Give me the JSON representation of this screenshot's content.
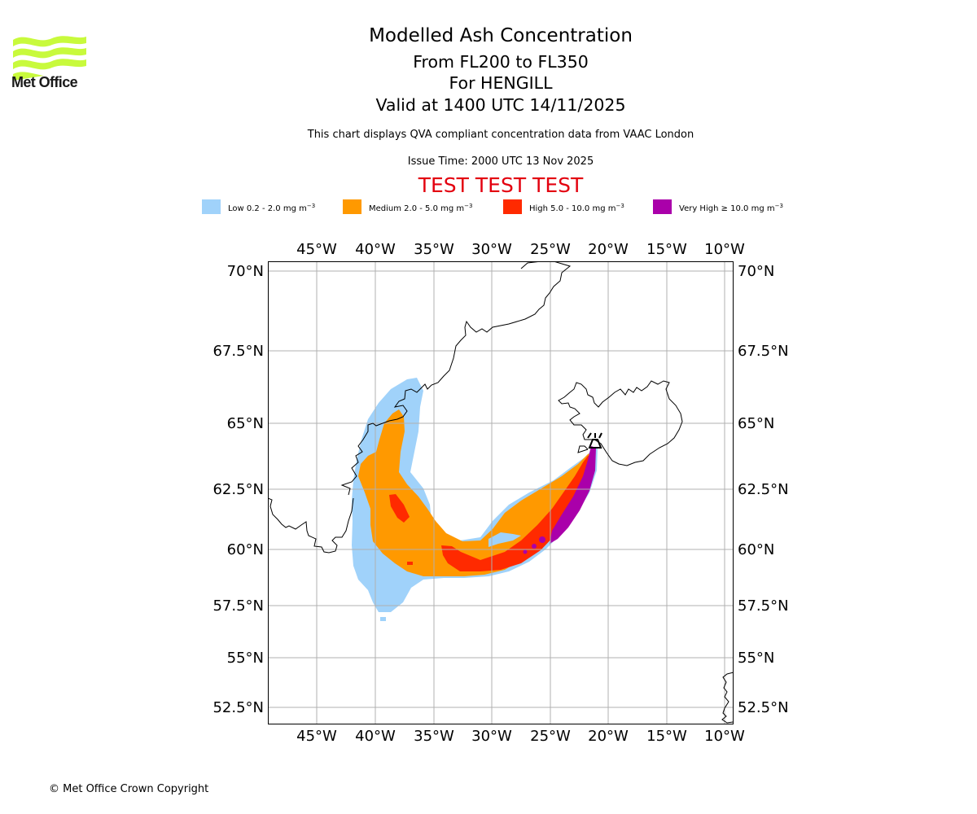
{
  "header": {
    "logo_text": "Met Office",
    "title": "Modelled Ash Concentration",
    "levels": "From FL200 to FL350",
    "volcano": "For HENGILL",
    "valid": "Valid at 1400 UTC 14/11/2025",
    "subtitle": "This chart displays QVA compliant concentration data from VAAC London",
    "issue_time": "Issue Time: 2000 UTC 13 Nov 2025",
    "test_banner": "TEST TEST TEST",
    "test_color": "#e3000f"
  },
  "legend": [
    {
      "label": "Low 0.2 - 2.0 mg m",
      "unit_sup": "−3",
      "color": "#a0d2fa"
    },
    {
      "label": "Medium 2.0 - 5.0 mg m",
      "unit_sup": "−3",
      "color": "#ff9900"
    },
    {
      "label": "High 5.0 - 10.0 mg m",
      "unit_sup": "−3",
      "color": "#ff2a00"
    },
    {
      "label": "Very High ≥ 10.0 mg m",
      "unit_sup": "−3",
      "color": "#aa00aa"
    }
  ],
  "map": {
    "lon_ticks": [
      "45°W",
      "40°W",
      "35°W",
      "30°W",
      "25°W",
      "20°W",
      "15°W",
      "10°W"
    ],
    "lat_ticks": [
      "70°N",
      "67.5°N",
      "65°N",
      "62.5°N",
      "60°N",
      "57.5°N",
      "55°N",
      "52.5°N"
    ],
    "volcano_marker": "volcano-symbol",
    "volcano_name": "HENGILL",
    "grid_color": "#b0b0b0",
    "coast_color": "#000000"
  },
  "footer": {
    "copyright": "© Met Office Crown Copyright"
  }
}
